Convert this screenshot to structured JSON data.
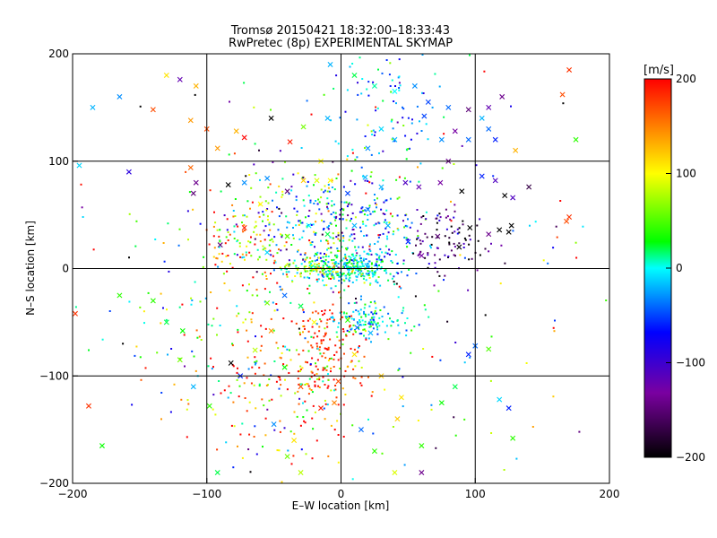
{
  "chart_data": {
    "type": "scatter",
    "title": "Tromsø 20150421 18:32:00–18:33:43",
    "subtitle": "RwPretec (8p) EXPERIMENTAL SKYMAP",
    "xlabel": "E–W location [km]",
    "ylabel": "N–S location [km]",
    "xlim": [
      -200,
      200
    ],
    "ylim": [
      -200,
      200
    ],
    "x_ticks": [
      "−200",
      "−100",
      "0",
      "100",
      "200"
    ],
    "y_ticks": [
      "−200",
      "−100",
      "0",
      "100",
      "200"
    ],
    "x_tick_values": [
      -200,
      -100,
      0,
      100,
      200
    ],
    "y_tick_values": [
      -200,
      -100,
      0,
      100,
      200
    ],
    "grid": true,
    "colorbar": {
      "label": "[m/s]",
      "range": [
        -200,
        200
      ],
      "ticks": [
        "200",
        "100",
        "0",
        "−100",
        "−200"
      ],
      "tick_values": [
        200,
        100,
        0,
        -100,
        -200
      ],
      "colormap": [
        "#000000",
        "#7a00a0",
        "#0000ff",
        "#00ffff",
        "#00ff00",
        "#ffff00",
        "#ff0000"
      ]
    },
    "series": [
      {
        "marker": "x",
        "points": [
          [
            -185,
            150,
            -20
          ],
          [
            -165,
            160,
            -30
          ],
          [
            -140,
            148,
            170
          ],
          [
            -130,
            180,
            110
          ],
          [
            -120,
            176,
            -120
          ],
          [
            -108,
            170,
            130
          ],
          [
            -112,
            138,
            140
          ],
          [
            -100,
            130,
            170
          ],
          [
            -92,
            112,
            140
          ],
          [
            -78,
            128,
            130
          ],
          [
            -72,
            122,
            200
          ],
          [
            -52,
            140,
            -200
          ],
          [
            -38,
            118,
            190
          ],
          [
            -28,
            132,
            60
          ],
          [
            -15,
            100,
            100
          ],
          [
            -10,
            140,
            -20
          ],
          [
            -195,
            96,
            -10
          ],
          [
            -158,
            90,
            -90
          ],
          [
            -112,
            94,
            160
          ],
          [
            -108,
            80,
            -140
          ],
          [
            -110,
            70,
            -150
          ],
          [
            -84,
            78,
            -200
          ],
          [
            -72,
            80,
            -30
          ],
          [
            -55,
            84,
            -30
          ],
          [
            -40,
            72,
            -150
          ],
          [
            -28,
            82,
            120
          ],
          [
            -18,
            82,
            90
          ],
          [
            -8,
            82,
            100
          ],
          [
            5,
            70,
            -50
          ],
          [
            18,
            85,
            -20
          ],
          [
            30,
            76,
            -20
          ],
          [
            48,
            80,
            -110
          ],
          [
            58,
            76,
            -120
          ],
          [
            74,
            80,
            -130
          ],
          [
            90,
            72,
            -200
          ],
          [
            105,
            86,
            -60
          ],
          [
            115,
            82,
            -110
          ],
          [
            122,
            68,
            -200
          ],
          [
            128,
            66,
            -110
          ],
          [
            140,
            76,
            -170
          ],
          [
            -8,
            190,
            -20
          ],
          [
            10,
            180,
            20
          ],
          [
            25,
            170,
            10
          ],
          [
            40,
            165,
            0
          ],
          [
            55,
            170,
            -30
          ],
          [
            65,
            155,
            -50
          ],
          [
            80,
            150,
            -40
          ],
          [
            95,
            148,
            -150
          ],
          [
            105,
            140,
            -20
          ],
          [
            110,
            130,
            -40
          ],
          [
            75,
            120,
            -30
          ],
          [
            40,
            120,
            -20
          ],
          [
            20,
            112,
            -30
          ],
          [
            30,
            130,
            -10
          ],
          [
            62,
            142,
            -50
          ],
          [
            85,
            128,
            -130
          ],
          [
            115,
            120,
            -60
          ],
          [
            110,
            150,
            -120
          ],
          [
            95,
            120,
            -40
          ],
          [
            130,
            110,
            130
          ],
          [
            170,
            185,
            180
          ],
          [
            165,
            162,
            170
          ],
          [
            175,
            120,
            40
          ],
          [
            170,
            48,
            180
          ],
          [
            168,
            44,
            170
          ],
          [
            -140,
            -30,
            40
          ],
          [
            -130,
            -50,
            20
          ],
          [
            -118,
            -58,
            30
          ],
          [
            -120,
            -85,
            60
          ],
          [
            -110,
            -110,
            -20
          ],
          [
            -98,
            -128,
            40
          ],
          [
            -188,
            -128,
            180
          ],
          [
            -198,
            -42,
            180
          ],
          [
            -165,
            -25,
            40
          ],
          [
            -75,
            -100,
            -60
          ],
          [
            -82,
            -88,
            -200
          ],
          [
            -64,
            -76,
            80
          ],
          [
            -52,
            -58,
            140
          ],
          [
            -42,
            -92,
            30
          ],
          [
            -30,
            -110,
            170
          ],
          [
            -15,
            -130,
            190
          ],
          [
            -2,
            -105,
            170
          ],
          [
            15,
            -150,
            -40
          ],
          [
            25,
            -170,
            40
          ],
          [
            42,
            -140,
            120
          ],
          [
            60,
            -165,
            40
          ],
          [
            60,
            -190,
            -140
          ],
          [
            75,
            -125,
            30
          ],
          [
            85,
            -110,
            20
          ],
          [
            95,
            -80,
            -60
          ],
          [
            100,
            -72,
            -40
          ],
          [
            110,
            -75,
            50
          ],
          [
            118,
            -122,
            -10
          ],
          [
            125,
            -130,
            -60
          ],
          [
            128,
            -158,
            40
          ],
          [
            -55,
            -32,
            60
          ],
          [
            -42,
            -25,
            -40
          ],
          [
            -30,
            -35,
            20
          ],
          [
            -20,
            -50,
            100
          ],
          [
            5,
            -48,
            40
          ],
          [
            12,
            -55,
            -40
          ],
          [
            22,
            -60,
            -20
          ],
          [
            -90,
            22,
            -150
          ],
          [
            -72,
            38,
            190
          ],
          [
            -60,
            60,
            100
          ],
          [
            -55,
            15,
            -10
          ],
          [
            -40,
            30,
            50
          ],
          [
            -24,
            40,
            0
          ],
          [
            -10,
            32,
            20
          ],
          [
            10,
            40,
            -20
          ],
          [
            20,
            55,
            -30
          ],
          [
            35,
            40,
            -20
          ],
          [
            50,
            25,
            -60
          ],
          [
            60,
            12,
            -130
          ],
          [
            72,
            30,
            -150
          ],
          [
            88,
            20,
            -200
          ],
          [
            96,
            38,
            -200
          ],
          [
            110,
            32,
            -140
          ],
          [
            118,
            36,
            -200
          ],
          [
            125,
            34,
            -200
          ],
          [
            127,
            40,
            -200
          ],
          [
            -178,
            -165,
            30
          ],
          [
            -92,
            -190,
            20
          ],
          [
            -40,
            -175,
            60
          ],
          [
            -30,
            -190,
            80
          ],
          [
            40,
            -190,
            90
          ],
          [
            45,
            -120,
            110
          ],
          [
            30,
            -100,
            120
          ],
          [
            10,
            -80,
            110
          ],
          [
            -5,
            -125,
            150
          ],
          [
            -35,
            -160,
            110
          ],
          [
            -50,
            -145,
            -30
          ],
          [
            80,
            100,
            -140
          ],
          [
            120,
            160,
            -140
          ]
        ]
      },
      {
        "marker": "dot",
        "clusters": [
          {
            "cx": 5,
            "cy": 0,
            "sx": 18,
            "sy": 7,
            "v": 0,
            "vs": 25,
            "n": 300
          },
          {
            "cx": 20,
            "cy": -50,
            "sx": 14,
            "sy": 9,
            "v": -5,
            "vs": 35,
            "n": 130
          },
          {
            "cx": -10,
            "cy": -70,
            "sx": 12,
            "sy": 24,
            "v": 185,
            "vs": 20,
            "n": 110
          },
          {
            "cx": -35,
            "cy": -105,
            "sx": 34,
            "sy": 42,
            "v": 125,
            "vs": 90,
            "n": 230
          },
          {
            "cx": -25,
            "cy": 45,
            "sx": 30,
            "sy": 30,
            "v": 15,
            "vs": 80,
            "n": 230
          },
          {
            "cx": 15,
            "cy": 35,
            "sx": 25,
            "sy": 22,
            "v": -30,
            "vs": 60,
            "n": 160
          },
          {
            "cx": 75,
            "cy": 28,
            "sx": 16,
            "sy": 16,
            "v": -150,
            "vs": 55,
            "n": 100
          },
          {
            "cx": 30,
            "cy": 150,
            "sx": 22,
            "sy": 30,
            "v": -20,
            "vs": 40,
            "n": 90
          },
          {
            "cx": -75,
            "cy": 20,
            "sx": 22,
            "sy": 22,
            "v": 120,
            "vs": 80,
            "n": 100
          },
          {
            "cx": -20,
            "cy": 0,
            "sx": 12,
            "sy": 5,
            "v": 80,
            "vs": 40,
            "n": 60
          },
          {
            "cx": -100,
            "cy": -60,
            "sx": 38,
            "sy": 40,
            "v": 60,
            "vs": 90,
            "n": 60
          },
          {
            "cx": 0,
            "cy": 0,
            "sx": 110,
            "sy": 110,
            "v": 0,
            "vs": 130,
            "n": 240
          }
        ]
      }
    ]
  }
}
